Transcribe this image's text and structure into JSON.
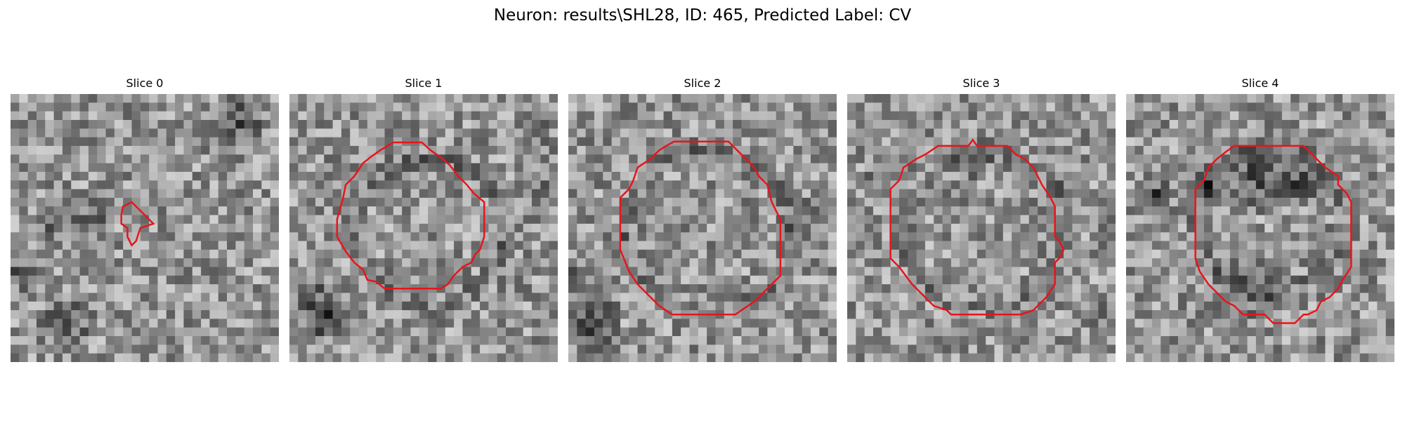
{
  "figure": {
    "title": "Neuron: results\\SHL28, ID: 465, Predicted Label: CV"
  },
  "panels": [
    {
      "title": "Slice 0"
    },
    {
      "title": "Slice 1"
    },
    {
      "title": "Slice 2"
    },
    {
      "title": "Slice 3"
    },
    {
      "title": "Slice 4"
    }
  ],
  "colors": {
    "contour": "#e8141c",
    "colormap": "grayscale"
  }
}
